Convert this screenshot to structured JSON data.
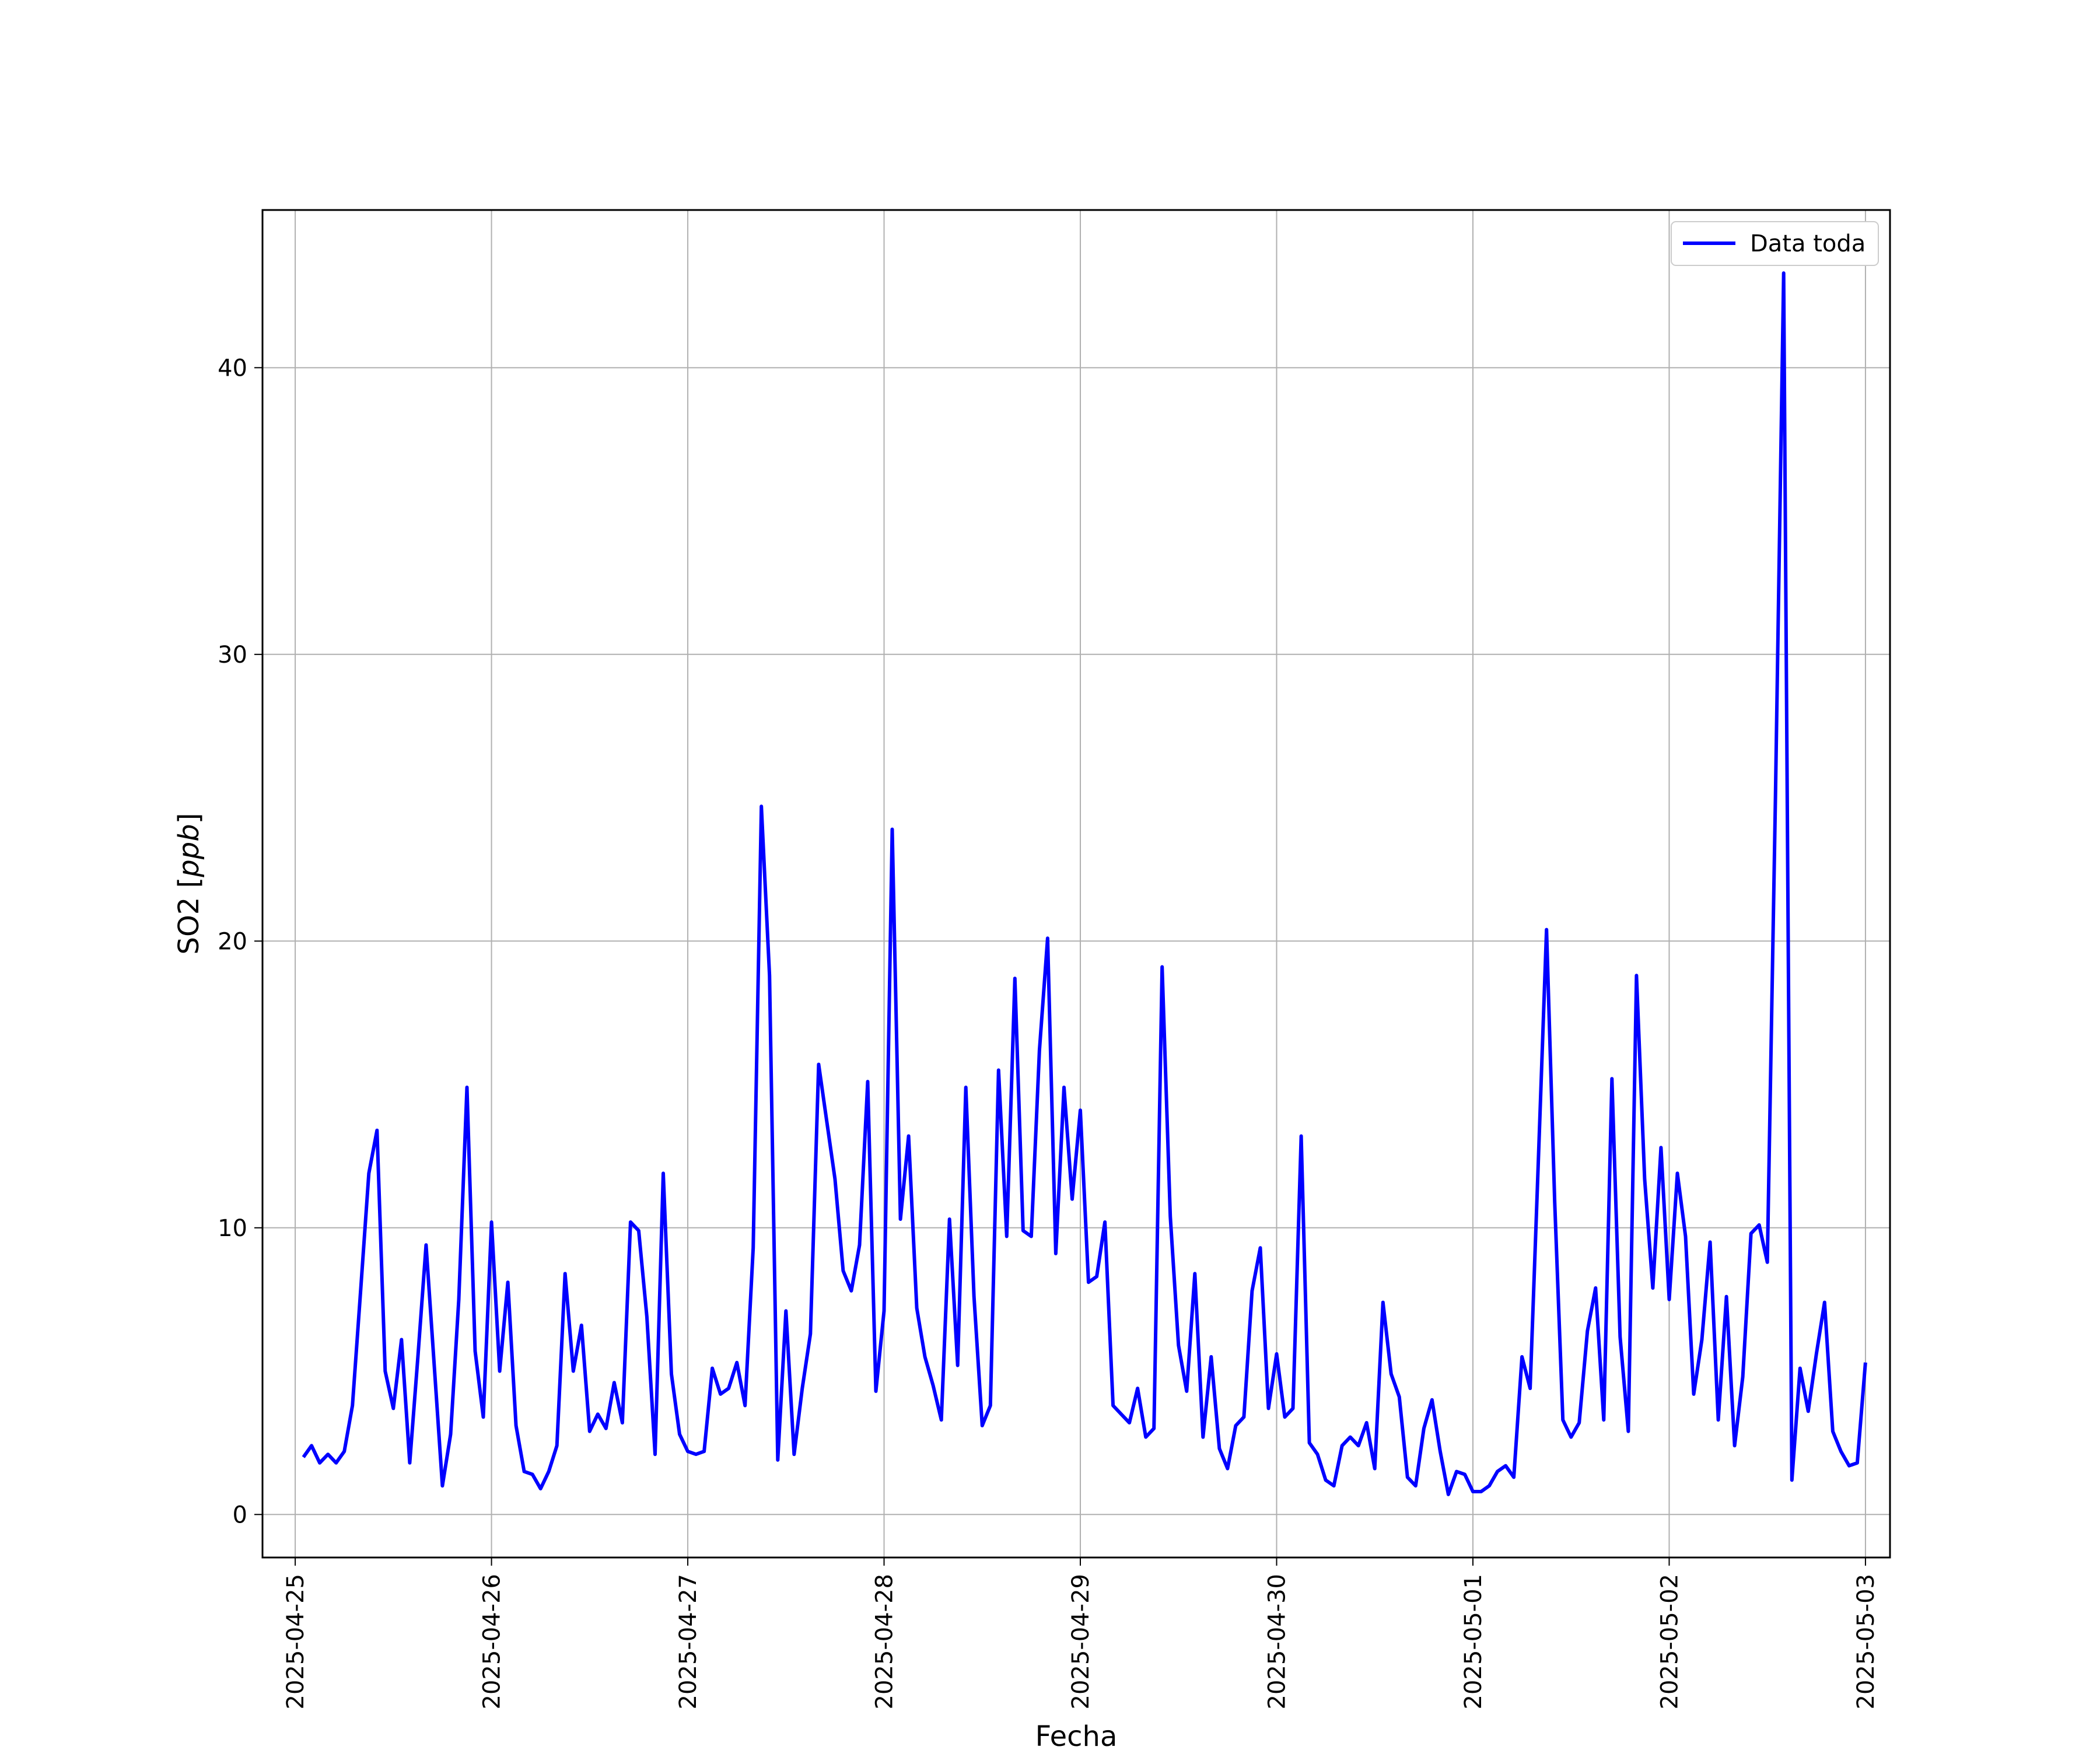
{
  "chart_data": {
    "type": "line",
    "title": "",
    "xlabel": "Fecha",
    "ylabel": "SO2 [",
    "ylabel_unit": "ppb",
    "ylabel_close": "]",
    "ylim": [
      -1.5,
      45.5
    ],
    "xlim": [
      "2025-04-24T20:00",
      "2025-05-03T03:00"
    ],
    "grid": true,
    "legend_position": "upper right",
    "x_ticks": [
      "2025-04-25",
      "2025-04-26",
      "2025-04-27",
      "2025-04-28",
      "2025-04-29",
      "2025-04-30",
      "2025-05-01",
      "2025-05-02",
      "2025-05-03"
    ],
    "y_ticks": [
      0,
      10,
      20,
      30,
      40
    ],
    "series": [
      {
        "name": "Data toda",
        "color": "#0000ff",
        "x_start": "2025-04-25T01:00",
        "x_step": "1h",
        "values": [
          2.0,
          2.4,
          1.8,
          2.1,
          1.8,
          2.2,
          3.8,
          7.8,
          11.9,
          13.4,
          5.0,
          3.7,
          6.1,
          1.8,
          5.5,
          9.4,
          5.2,
          1.0,
          2.8,
          7.5,
          14.9,
          5.7,
          3.4,
          10.2,
          5.0,
          8.1,
          3.1,
          1.5,
          1.4,
          0.9,
          1.5,
          2.4,
          8.4,
          5.0,
          6.6,
          2.9,
          3.5,
          3.0,
          4.6,
          3.2,
          10.2,
          9.9,
          6.9,
          2.1,
          11.9,
          4.9,
          2.8,
          2.2,
          2.1,
          2.2,
          5.1,
          4.2,
          4.4,
          5.3,
          3.8,
          9.3,
          24.7,
          18.8,
          1.9,
          7.1,
          2.1,
          4.4,
          6.3,
          15.7,
          13.7,
          11.7,
          8.5,
          7.8,
          9.4,
          15.1,
          4.3,
          7.1,
          23.9,
          10.3,
          13.2,
          7.2,
          5.5,
          4.5,
          3.3,
          10.3,
          5.2,
          14.9,
          7.6,
          3.1,
          3.8,
          15.5,
          9.7,
          18.7,
          9.9,
          9.7,
          16.2,
          20.1,
          9.1,
          14.9,
          11.0,
          14.1,
          8.1,
          8.3,
          10.2,
          3.8,
          3.5,
          3.2,
          4.4,
          2.7,
          3.0,
          19.1,
          10.4,
          5.9,
          4.3,
          8.4,
          2.7,
          5.5,
          2.3,
          1.6,
          3.1,
          3.4,
          7.8,
          9.3,
          3.7,
          5.6,
          3.4,
          3.7,
          13.2,
          2.5,
          2.1,
          1.2,
          1.0,
          2.4,
          2.7,
          2.4,
          3.2,
          1.6,
          7.4,
          4.9,
          4.1,
          1.3,
          1.0,
          3.0,
          4.0,
          2.2,
          0.7,
          1.5,
          1.4,
          0.8,
          0.8,
          1.0,
          1.5,
          1.7,
          1.3,
          5.5,
          4.4,
          12.3,
          20.4,
          10.9,
          3.3,
          2.7,
          3.2,
          6.4,
          7.9,
          3.3,
          15.2,
          6.2,
          2.9,
          18.8,
          11.7,
          7.9,
          12.8,
          7.5,
          11.9,
          9.7,
          4.2,
          6.1,
          9.5,
          3.3,
          7.6,
          2.4,
          4.8,
          9.8,
          10.1,
          8.8,
          25.1,
          43.3,
          1.2,
          5.1,
          3.6,
          5.6,
          7.4,
          2.9,
          2.2,
          1.7,
          1.8,
          5.3
        ]
      }
    ]
  }
}
